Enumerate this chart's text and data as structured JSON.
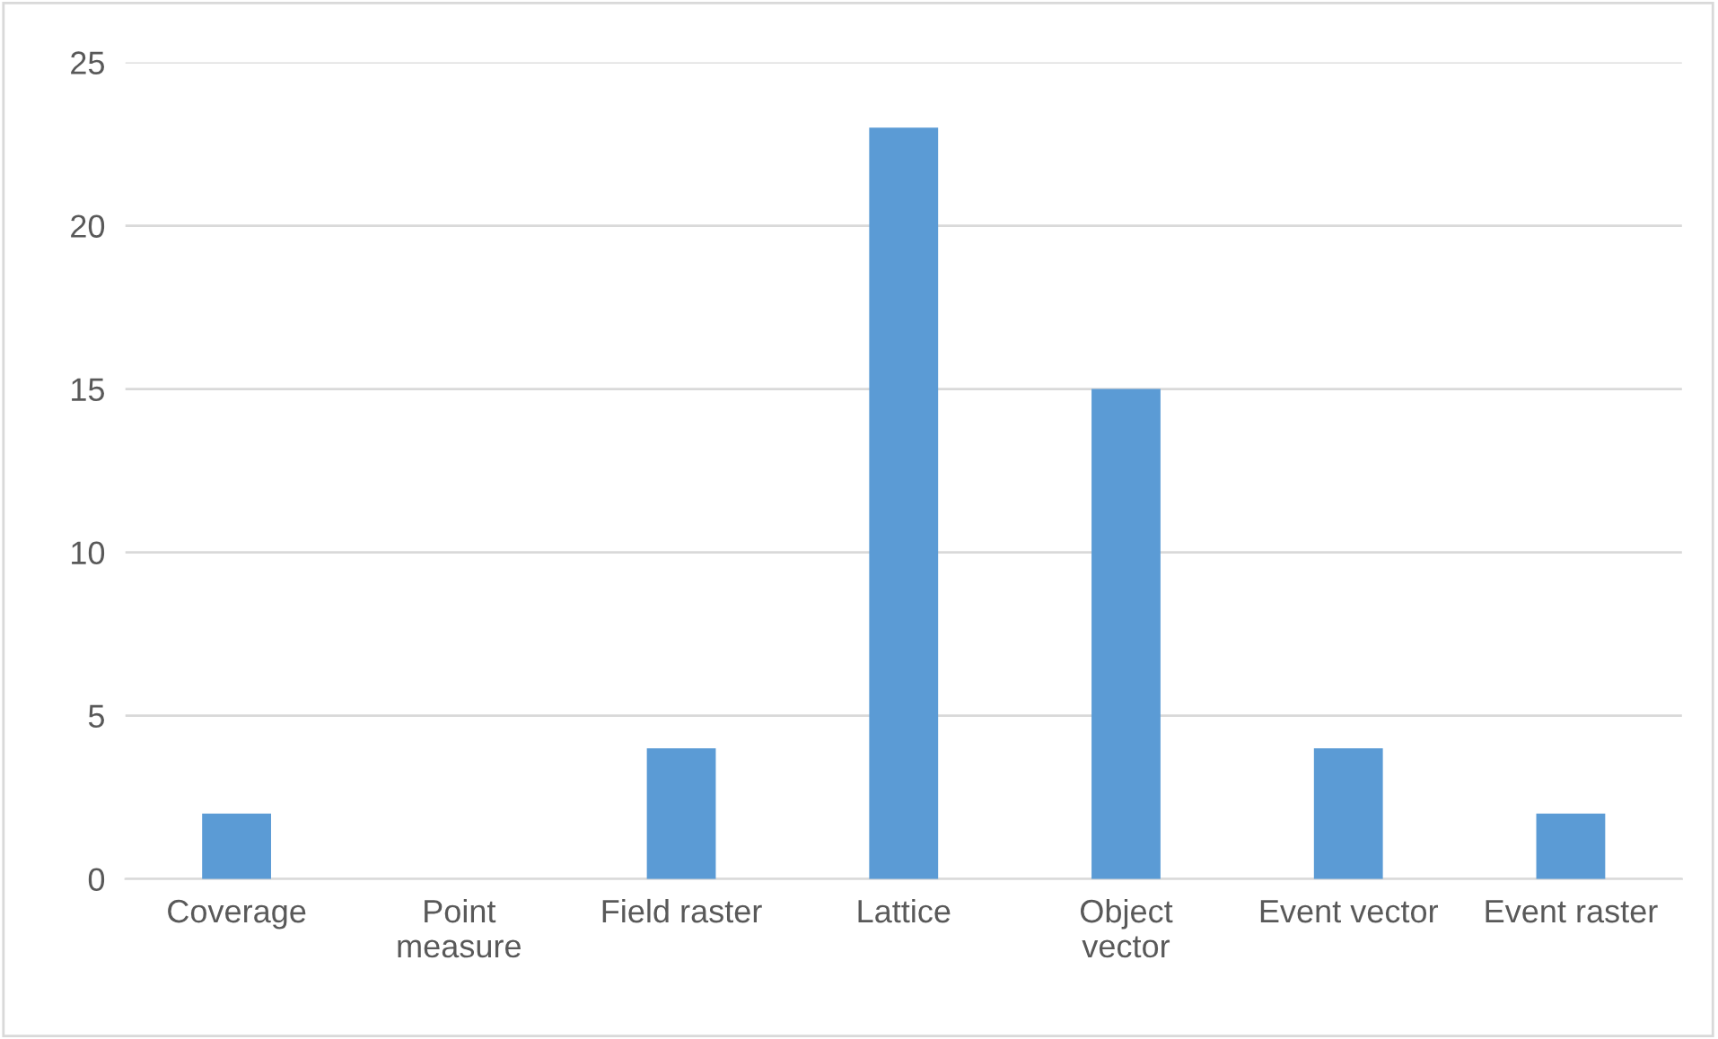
{
  "chart_data": {
    "type": "bar",
    "categories": [
      "Coverage",
      "Point measure",
      "Field raster",
      "Lattice",
      "Object vector",
      "Event vector",
      "Event raster"
    ],
    "values": [
      2,
      0,
      4,
      23,
      15,
      4,
      2
    ],
    "color": "#5b9bd5",
    "ylim": [
      0,
      25
    ],
    "yticks": [
      0,
      5,
      10,
      15,
      20,
      25
    ],
    "grid": "y",
    "legend": false
  }
}
